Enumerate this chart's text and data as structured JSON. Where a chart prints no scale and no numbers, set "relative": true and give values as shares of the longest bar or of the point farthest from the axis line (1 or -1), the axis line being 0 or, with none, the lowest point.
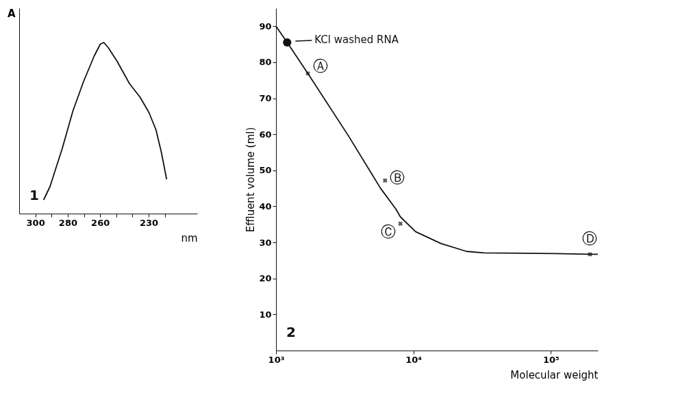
{
  "chart_data": [
    {
      "type": "line",
      "relative": true,
      "xlabel": "nm",
      "ylabel": "A",
      "tick_labels": "x",
      "grid": false,
      "annotations": [
        "1"
      ],
      "xlim": [
        310,
        200
      ],
      "xticks": [
        300,
        {
          "value": 290,
          "label": null
        },
        280,
        {
          "value": 270,
          "label": null
        },
        260,
        {
          "value": 250,
          "label": null
        },
        {
          "value": 240,
          "label": null
        },
        230,
        {
          "value": 220,
          "label": null
        }
      ],
      "x": [
        294.9,
        291,
        283.4,
        276.8,
        270.3,
        263.7,
        259.9,
        257.7,
        255,
        249.5,
        241.9,
        235.3,
        229.8,
        225.5,
        222.2,
        218.9
      ],
      "series": [
        {
          "color": "#111111",
          "marker": "none",
          "values": [
            0.08,
            0.157,
            0.38,
            0.6,
            0.77,
            0.92,
            0.99,
            1.0,
            0.97,
            0.89,
            0.76,
            0.68,
            0.59,
            0.49,
            0.36,
            0.2
          ]
        }
      ]
    },
    {
      "type": "line",
      "xlabel": "Molecular weight",
      "ylabel": "Effluent volume (ml)",
      "log": "x",
      "grid": false,
      "xlim": [
        1000,
        220000
      ],
      "xticks": [
        {
          "value": 1000,
          "label": "10³"
        },
        {
          "value": 10000,
          "label": "10⁴"
        },
        {
          "value": 100000,
          "label": "10⁵"
        }
      ],
      "ylim": [
        0,
        95
      ],
      "yticks": [
        10,
        20,
        30,
        40,
        50,
        60,
        70,
        80,
        90
      ],
      "annotations": [
        {
          "text": "KCl washed RNA",
          "x": 1206,
          "y": 85.5
        },
        {
          "text": "Ⓐ",
          "x": 1706,
          "y": 76.9
        },
        {
          "text": "Ⓑ",
          "x": 6220,
          "y": 47.2
        },
        {
          "text": "Ⓒ",
          "x": 8040,
          "y": 35.2
        },
        {
          "text": "Ⓓ",
          "x": 192800,
          "y": 26.7
        },
        "2"
      ],
      "series": [
        {
          "type": "line",
          "color": "#111111",
          "marker": "none",
          "x": [
            1000,
            1206,
            1706,
            3390,
            5750,
            7480,
            8040,
            10370,
            15850,
            24400,
            32800,
            107000,
            192800,
            220000
          ],
          "values": [
            90,
            85.5,
            76.9,
            59.4,
            45.1,
            39.2,
            37.1,
            33.0,
            29.7,
            27.5,
            27.1,
            26.9,
            26.7,
            26.7
          ]
        },
        {
          "type": "scatter",
          "color": "#111111",
          "marker": "circle",
          "x": [
            1206
          ],
          "values": [
            85.5
          ]
        },
        {
          "type": "scatter",
          "color": "#111111",
          "marker": "cross",
          "x": [
            1706,
            6220,
            8040,
            192800
          ],
          "values": [
            76.9,
            47.2,
            35.2,
            26.7
          ]
        }
      ]
    }
  ]
}
